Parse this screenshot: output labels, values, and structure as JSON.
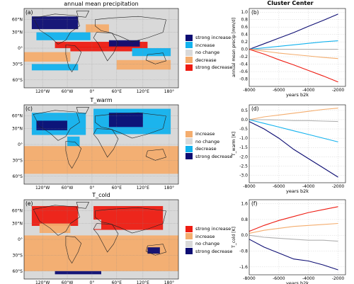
{
  "column_title": "Cluster Center",
  "maps": [
    {
      "panel": "(a)",
      "title": "annual mean precipitation",
      "legend": [
        {
          "label": "strong increase",
          "color": "#0d0d73"
        },
        {
          "label": "increase",
          "color": "#12b2ee"
        },
        {
          "label": "no change",
          "color": "#d9d9d9"
        },
        {
          "label": "decrease",
          "color": "#f4ad6e"
        },
        {
          "label": "strong decrease",
          "color": "#ee1c12"
        }
      ]
    },
    {
      "panel": "(c)",
      "title": "T_warm",
      "legend": [
        {
          "label": "increase",
          "color": "#f4ad6e"
        },
        {
          "label": "no change",
          "color": "#d9d9d9"
        },
        {
          "label": "decrease",
          "color": "#12b2ee"
        },
        {
          "label": "strong decrease",
          "color": "#0d0d73"
        }
      ]
    },
    {
      "panel": "(e)",
      "title": "T_cold",
      "legend": [
        {
          "label": "strong increase",
          "color": "#ee1c12"
        },
        {
          "label": "increase",
          "color": "#f4ad6e"
        },
        {
          "label": "no change",
          "color": "#d9d9d9"
        },
        {
          "label": "strong decrease",
          "color": "#0d0d73"
        }
      ]
    }
  ],
  "map_axes": {
    "lat_ticks": [
      "60°N",
      "30°N",
      "0°",
      "30°S",
      "60°S"
    ],
    "lon_ticks": [
      "120°W",
      "60°W",
      "0°",
      "60°E",
      "120°E",
      "180°"
    ]
  },
  "chart_data": [
    {
      "type": "line",
      "panel": "(b)",
      "xlabel": "years b2k",
      "ylabel": "annual mean precip [mm/d]",
      "xlim": [
        -8000,
        -1500
      ],
      "ylim": [
        -1.0,
        1.1
      ],
      "xticks": [
        -8000,
        -6000,
        -4000,
        -2000
      ],
      "yticks": [
        -0.8,
        -0.6,
        -0.4,
        -0.2,
        0.0,
        0.2,
        0.4,
        0.6,
        0.8,
        1.0
      ],
      "x": [
        -8000,
        -7000,
        -6000,
        -5000,
        -4000,
        -3000,
        -2000
      ],
      "series": [
        {
          "color": "#0d0d73",
          "values": [
            0.0,
            0.15,
            0.3,
            0.45,
            0.62,
            0.78,
            0.95
          ]
        },
        {
          "color": "#12b2ee",
          "values": [
            0.0,
            0.04,
            0.08,
            0.12,
            0.16,
            0.2,
            0.23
          ]
        },
        {
          "color": "#b0b0b0",
          "values": [
            0.0,
            0.0,
            0.0,
            0.0,
            0.0,
            0.0,
            0.0
          ]
        },
        {
          "color": "#f4ad6e",
          "values": [
            0.0,
            -0.05,
            -0.1,
            -0.14,
            -0.18,
            -0.22,
            -0.25
          ]
        },
        {
          "color": "#ee1c12",
          "values": [
            0.0,
            -0.13,
            -0.28,
            -0.42,
            -0.57,
            -0.72,
            -0.88
          ]
        }
      ]
    },
    {
      "type": "line",
      "panel": "(d)",
      "xlabel": "years b2k",
      "ylabel": "T_warm [K]",
      "xlim": [
        -8000,
        -1500
      ],
      "ylim": [
        -3.4,
        0.8
      ],
      "xticks": [
        -8000,
        -6000,
        -4000,
        -2000
      ],
      "yticks": [
        -3.0,
        -2.5,
        -2.0,
        -1.5,
        -1.0,
        -0.5,
        0.0,
        0.5
      ],
      "x": [
        -8000,
        -7000,
        -6000,
        -5000,
        -4000,
        -3000,
        -2000
      ],
      "series": [
        {
          "color": "#f4ad6e",
          "values": [
            0.0,
            0.15,
            0.25,
            0.35,
            0.45,
            0.55,
            0.62
          ]
        },
        {
          "color": "#b0b0b0",
          "values": [
            0.0,
            0.0,
            -0.02,
            -0.05,
            -0.05,
            -0.08,
            -0.1
          ]
        },
        {
          "color": "#12b2ee",
          "values": [
            0.0,
            -0.2,
            -0.4,
            -0.6,
            -0.8,
            -1.0,
            -1.2
          ]
        },
        {
          "color": "#0d0d73",
          "values": [
            -0.1,
            -0.5,
            -1.0,
            -1.6,
            -2.1,
            -2.6,
            -3.1
          ]
        }
      ]
    },
    {
      "type": "line",
      "panel": "(f)",
      "xlabel": "years b2k",
      "ylabel": "T_cold [K]",
      "xlim": [
        -8000,
        -1500
      ],
      "ylim": [
        -2.0,
        1.8
      ],
      "xticks": [
        -8000,
        -6000,
        -4000,
        -2000
      ],
      "yticks": [
        -1.6,
        -0.8,
        0.0,
        0.8,
        1.6
      ],
      "x": [
        -8000,
        -7000,
        -6000,
        -5000,
        -4000,
        -3000,
        -2000
      ],
      "series": [
        {
          "color": "#ee1c12",
          "values": [
            0.2,
            0.5,
            0.75,
            0.95,
            1.15,
            1.3,
            1.45
          ]
        },
        {
          "color": "#f4ad6e",
          "values": [
            0.1,
            0.25,
            0.35,
            0.45,
            0.5,
            0.55,
            0.6
          ]
        },
        {
          "color": "#b0b0b0",
          "values": [
            0.0,
            -0.1,
            -0.15,
            -0.2,
            -0.25,
            -0.25,
            -0.3
          ]
        },
        {
          "color": "#0d0d73",
          "values": [
            -0.2,
            -0.6,
            -0.9,
            -1.2,
            -1.3,
            -1.5,
            -1.75
          ]
        }
      ]
    }
  ]
}
